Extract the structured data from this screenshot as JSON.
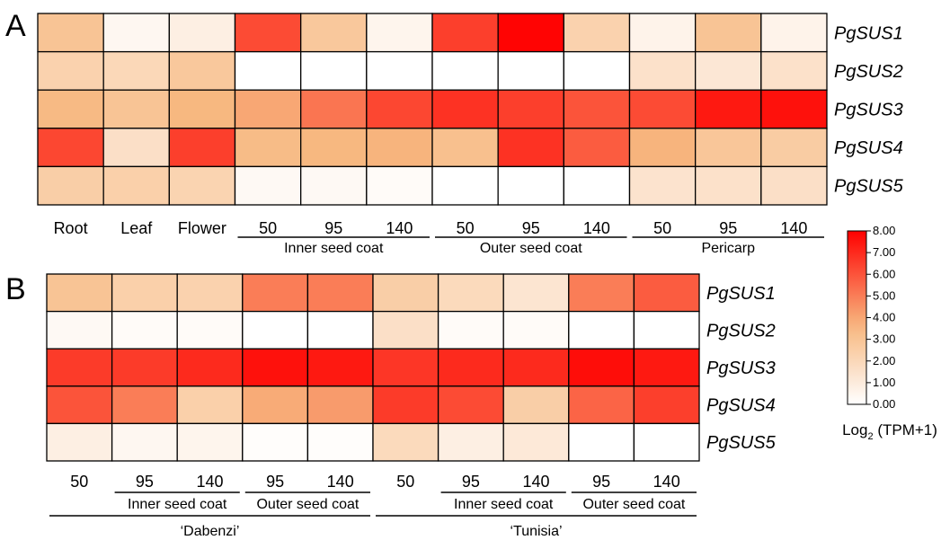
{
  "colorbar": {
    "ticks": [
      "8.00",
      "7.00",
      "6.00",
      "5.00",
      "4.00",
      "3.00",
      "2.00",
      "1.00",
      "0.00"
    ],
    "title_main": "Log",
    "title_sub": "2",
    "title_rest": " (TPM+1)",
    "min": 0,
    "max": 8,
    "color_low": "#ffffff",
    "color_mid": "#f7b880",
    "color_high": "#ff0000"
  },
  "chart_data": [
    {
      "type": "heatmap",
      "panel": "A",
      "rows": [
        "PgSUS1",
        "PgSUS2",
        "PgSUS3",
        "PgSUS4",
        "PgSUS5"
      ],
      "columns": [
        "Root",
        "Leaf",
        "Flower",
        "50",
        "95",
        "140",
        "50",
        "95",
        "140",
        "50",
        "95",
        "140"
      ],
      "column_groups": [
        {
          "label": "Inner seed coat",
          "span": [
            3,
            5
          ]
        },
        {
          "label": "Outer seed coat",
          "span": [
            6,
            8
          ]
        },
        {
          "label": "Pericarp",
          "span": [
            9,
            11
          ]
        }
      ],
      "values": [
        [
          3.0,
          0.4,
          0.8,
          6.2,
          2.8,
          0.5,
          6.5,
          7.9,
          2.3,
          0.6,
          3.0,
          0.6
        ],
        [
          2.3,
          2.0,
          2.8,
          0.0,
          0.0,
          0.0,
          0.0,
          0.0,
          0.0,
          1.5,
          1.2,
          1.5
        ],
        [
          3.5,
          3.0,
          3.6,
          4.0,
          5.2,
          6.3,
          6.8,
          6.5,
          6.0,
          6.2,
          7.4,
          7.6
        ],
        [
          6.3,
          1.6,
          6.5,
          3.4,
          3.6,
          3.7,
          3.2,
          6.8,
          5.8,
          3.7,
          2.9,
          2.6
        ],
        [
          2.5,
          2.4,
          2.2,
          0.3,
          0.3,
          0.2,
          0.0,
          0.0,
          0.0,
          1.4,
          1.5,
          1.6
        ]
      ],
      "range": [
        0,
        8
      ]
    },
    {
      "type": "heatmap",
      "panel": "B",
      "rows": [
        "PgSUS1",
        "PgSUS2",
        "PgSUS3",
        "PgSUS4",
        "PgSUS5"
      ],
      "columns": [
        "50",
        "95",
        "140",
        "95",
        "140",
        "50",
        "95",
        "140",
        "95",
        "140"
      ],
      "column_groups": [
        {
          "label": "Inner seed coat",
          "span": [
            1,
            2
          ]
        },
        {
          "label": "Outer seed coat",
          "span": [
            3,
            4
          ]
        },
        {
          "label": "Inner seed coat",
          "span": [
            6,
            7
          ]
        },
        {
          "label": "Outer seed coat",
          "span": [
            8,
            9
          ]
        }
      ],
      "cultivar_groups": [
        {
          "label": "‘Dabenzi’",
          "span": [
            0,
            4
          ]
        },
        {
          "label": "‘Tunisia’",
          "span": [
            5,
            9
          ]
        }
      ],
      "values": [
        [
          3.0,
          2.4,
          2.3,
          5.0,
          5.0,
          2.5,
          1.9,
          1.3,
          5.0,
          5.8
        ],
        [
          0.3,
          0.2,
          0.2,
          0.0,
          0.0,
          1.6,
          0.2,
          0.2,
          0.0,
          0.0
        ],
        [
          6.6,
          6.6,
          7.0,
          7.6,
          7.4,
          6.7,
          7.0,
          7.0,
          7.7,
          7.4
        ],
        [
          6.0,
          5.0,
          2.4,
          3.9,
          4.3,
          6.6,
          6.2,
          2.5,
          5.6,
          6.5
        ],
        [
          0.8,
          0.4,
          0.5,
          0.1,
          0.1,
          1.9,
          0.8,
          1.1,
          0.0,
          0.0
        ]
      ],
      "range": [
        0,
        8
      ]
    }
  ]
}
